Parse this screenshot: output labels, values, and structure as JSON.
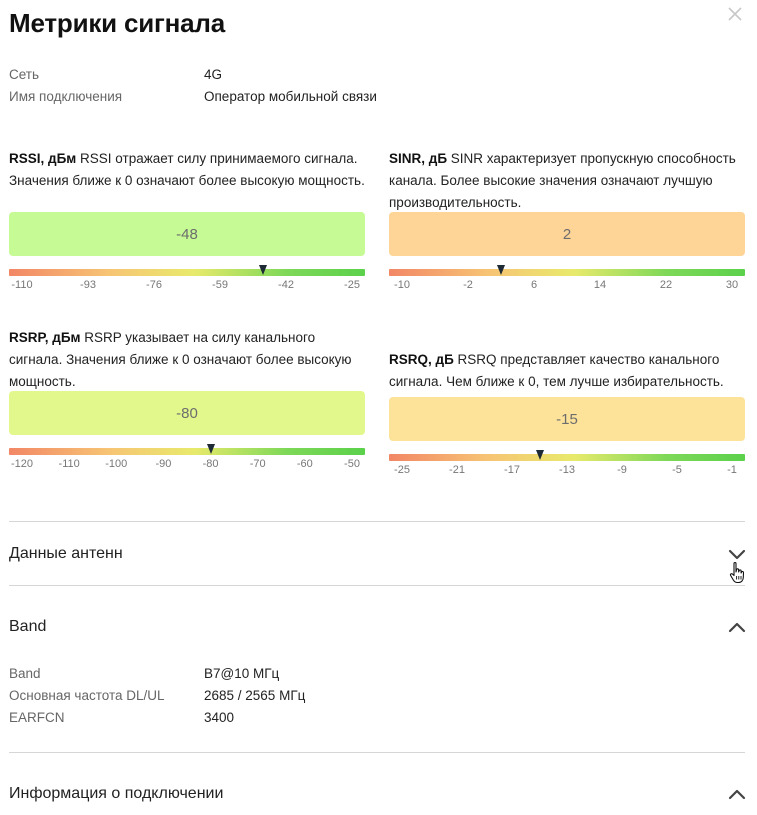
{
  "dialog": {
    "title": "Метрики сигнала"
  },
  "info": [
    {
      "key": "Сеть",
      "value": "4G"
    },
    {
      "key": "Имя подключения",
      "value": "Оператор мобильной связи"
    }
  ],
  "metrics": [
    {
      "name": "RSSI, дБм",
      "description": "RSSI отражает силу принимаемого сигнала. Значения ближе к 0 означают более высокую мощность.",
      "value": "-48",
      "numeric_value": -48,
      "box_color": "#c5fa94",
      "ticks": [
        "-110",
        "-93",
        "-76",
        "-59",
        "-42",
        "-25"
      ],
      "range": [
        -110,
        -25
      ]
    },
    {
      "name": "SINR, дБ",
      "description": "SINR характеризует пропускную способность канала. Более высокие значения означают лучшую производительность.",
      "value": "2",
      "numeric_value": 2,
      "box_color": "#fed497",
      "ticks": [
        "-10",
        "-2",
        "6",
        "14",
        "22",
        "30"
      ],
      "range": [
        -10,
        30
      ]
    },
    {
      "name": "RSRP, дБм",
      "description": "RSRP указывает на силу канального сигнала. Значения ближе к 0 означают более высокую мощность.",
      "value": "-80",
      "numeric_value": -80,
      "box_color": "#e2f88c",
      "ticks": [
        "-120",
        "-110",
        "-100",
        "-90",
        "-80",
        "-70",
        "-60",
        "-50"
      ],
      "range": [
        -120,
        -50
      ]
    },
    {
      "name": "RSRQ, дБ",
      "description": "RSRQ представляет качество канального сигнала. Чем ближе к 0, тем лучше избирательность.",
      "value": "-15",
      "numeric_value": -15,
      "box_color": "#fde29a",
      "ticks": [
        "-25",
        "-21",
        "-17",
        "-13",
        "-9",
        "-5",
        "-1"
      ],
      "range": [
        -25,
        -1
      ]
    }
  ],
  "sections": {
    "antenna": {
      "title": "Данные антенн",
      "expanded": false
    },
    "band": {
      "title": "Band",
      "expanded": true,
      "rows": [
        {
          "key": "Band",
          "value": "B7@10 МГц"
        },
        {
          "key": "Основная частота DL/UL",
          "value": "2685 / 2565 МГц"
        },
        {
          "key": "EARFCN",
          "value": "3400"
        }
      ]
    },
    "connection": {
      "title": "Информация о подключении",
      "expanded": true
    }
  },
  "icons": {
    "close": "close-icon",
    "collapsed": "chevron-down-icon",
    "expanded": "chevron-up-icon",
    "cursor": "hand-cursor-icon"
  }
}
